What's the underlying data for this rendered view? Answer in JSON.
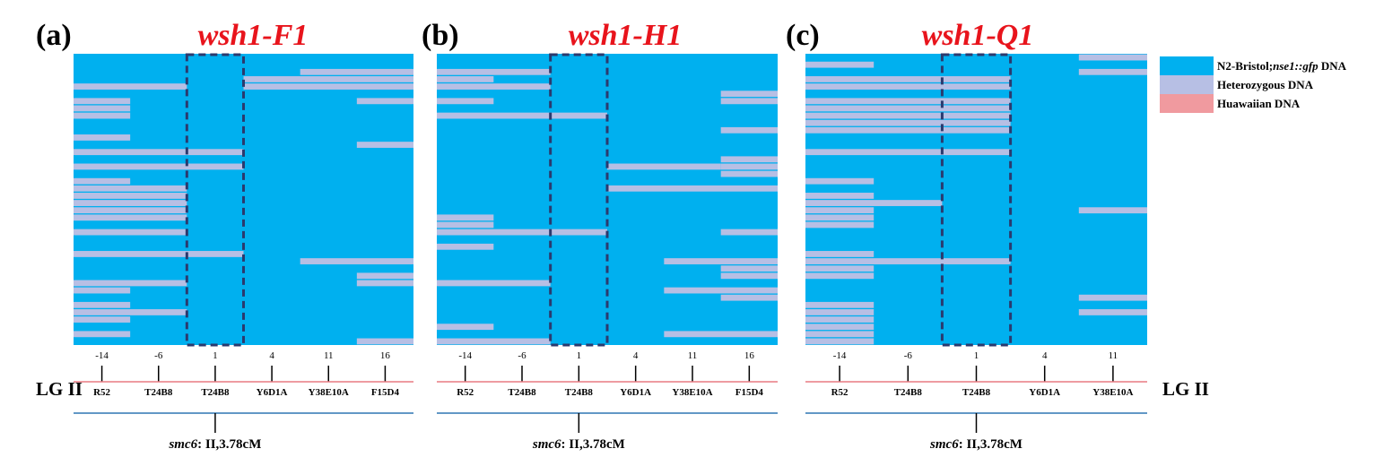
{
  "chart_data": {
    "type": "heatmap",
    "colors": {
      "n2": "#00b0ef",
      "het": "#b7bfe4",
      "hawaiian": "#f09a9f",
      "lg_line": "#e87a82",
      "gene_line": "#2f77b4",
      "dash": "#2b3a6e"
    },
    "legend": [
      {
        "key": "n2",
        "label_prefix": "N2-Bristol;",
        "label_italic": "nse1::gfp",
        "label_suffix": " DNA"
      },
      {
        "key": "het",
        "label": "Heterozygous DNA"
      },
      {
        "key": "hawaiian",
        "label": "Huawaiian DNA"
      }
    ],
    "linkage_group": "LG II",
    "gene_annotation": {
      "italic": "smc6",
      "text": ": II,3.78cM"
    },
    "panels": [
      {
        "label": "(a)",
        "title": "wsh1-F1",
        "columns": [
          {
            "pos": "-14",
            "marker": "R52"
          },
          {
            "pos": "-6",
            "marker": "T24B8"
          },
          {
            "pos": "1",
            "marker": "T24B8"
          },
          {
            "pos": "4",
            "marker": "Y6D1A"
          },
          {
            "pos": "11",
            "marker": "Y38E10A"
          },
          {
            "pos": "16",
            "marker": "F15D4"
          }
        ],
        "n_rows": 40,
        "highlight_columns": [
          2,
          3
        ],
        "het_segments": [
          [
            4,
            0,
            2
          ],
          [
            31,
            0,
            2
          ],
          [
            6,
            0,
            1
          ],
          [
            7,
            0,
            1
          ],
          [
            8,
            0,
            1
          ],
          [
            11,
            0,
            1
          ],
          [
            13,
            0,
            3
          ],
          [
            15,
            0,
            3
          ],
          [
            17,
            0,
            1
          ],
          [
            18,
            0,
            2
          ],
          [
            19,
            0,
            2
          ],
          [
            20,
            0,
            2
          ],
          [
            21,
            0,
            2
          ],
          [
            22,
            0,
            2
          ],
          [
            24,
            0,
            2
          ],
          [
            27,
            0,
            3
          ],
          [
            32,
            0,
            1
          ],
          [
            34,
            0,
            1
          ],
          [
            35,
            0,
            2
          ],
          [
            36,
            0,
            1
          ],
          [
            38,
            0,
            1
          ],
          [
            3,
            3,
            6
          ],
          [
            4,
            3,
            6
          ],
          [
            2,
            4,
            6
          ],
          [
            6,
            5,
            6
          ],
          [
            12,
            5,
            6
          ],
          [
            28,
            4,
            6
          ],
          [
            30,
            5,
            6
          ],
          [
            31,
            5,
            6
          ],
          [
            39,
            5,
            6
          ]
        ]
      },
      {
        "label": "(b)",
        "title": "wsh1-H1",
        "columns": [
          {
            "pos": "-14",
            "marker": "R52"
          },
          {
            "pos": "-6",
            "marker": "T24B8"
          },
          {
            "pos": "1",
            "marker": "T24B8"
          },
          {
            "pos": "4",
            "marker": "Y6D1A"
          },
          {
            "pos": "11",
            "marker": "Y38E10A"
          },
          {
            "pos": "16",
            "marker": "F15D4"
          }
        ],
        "n_rows": 40,
        "highlight_columns": [
          2,
          3
        ],
        "het_segments": [
          [
            2,
            0,
            2
          ],
          [
            3,
            0,
            1
          ],
          [
            4,
            0,
            2
          ],
          [
            6,
            0,
            1
          ],
          [
            8,
            0,
            3
          ],
          [
            22,
            0,
            1
          ],
          [
            23,
            0,
            1
          ],
          [
            24,
            0,
            3
          ],
          [
            26,
            0,
            1
          ],
          [
            31,
            0,
            2
          ],
          [
            37,
            0,
            1
          ],
          [
            39,
            0,
            2
          ],
          [
            15,
            3,
            5
          ],
          [
            14,
            5,
            6
          ],
          [
            15,
            5,
            6
          ],
          [
            16,
            5,
            6
          ],
          [
            18,
            3,
            6
          ],
          [
            24,
            5,
            6
          ],
          [
            5,
            5,
            6
          ],
          [
            6,
            5,
            6
          ],
          [
            10,
            5,
            6
          ],
          [
            28,
            4,
            6
          ],
          [
            29,
            5,
            6
          ],
          [
            30,
            5,
            6
          ],
          [
            32,
            4,
            6
          ],
          [
            33,
            5,
            6
          ],
          [
            38,
            4,
            6
          ]
        ]
      },
      {
        "label": "(c)",
        "title": "wsh1-Q1",
        "columns": [
          {
            "pos": "-14",
            "marker": "R52"
          },
          {
            "pos": "-6",
            "marker": "T24B8"
          },
          {
            "pos": "1",
            "marker": "T24B8"
          },
          {
            "pos": "4",
            "marker": "Y6D1A"
          },
          {
            "pos": "11",
            "marker": "Y38E10A"
          }
        ],
        "n_rows": 40,
        "highlight_columns": [
          2,
          3
        ],
        "het_segments": [
          [
            1,
            0,
            1
          ],
          [
            3,
            0,
            3
          ],
          [
            4,
            0,
            3
          ],
          [
            6,
            0,
            3
          ],
          [
            7,
            0,
            3
          ],
          [
            8,
            0,
            3
          ],
          [
            9,
            0,
            3
          ],
          [
            10,
            0,
            3
          ],
          [
            13,
            0,
            3
          ],
          [
            17,
            0,
            1
          ],
          [
            19,
            0,
            1
          ],
          [
            20,
            0,
            2
          ],
          [
            21,
            0,
            1
          ],
          [
            22,
            0,
            1
          ],
          [
            23,
            0,
            1
          ],
          [
            27,
            0,
            1
          ],
          [
            28,
            0,
            3
          ],
          [
            29,
            0,
            1
          ],
          [
            30,
            0,
            1
          ],
          [
            34,
            0,
            1
          ],
          [
            35,
            0,
            1
          ],
          [
            36,
            0,
            1
          ],
          [
            37,
            0,
            1
          ],
          [
            38,
            0,
            1
          ],
          [
            39,
            0,
            1
          ],
          [
            0,
            4,
            5
          ],
          [
            2,
            4,
            5
          ],
          [
            21,
            4,
            5
          ],
          [
            33,
            4,
            5
          ],
          [
            35,
            4,
            5
          ]
        ]
      }
    ]
  }
}
